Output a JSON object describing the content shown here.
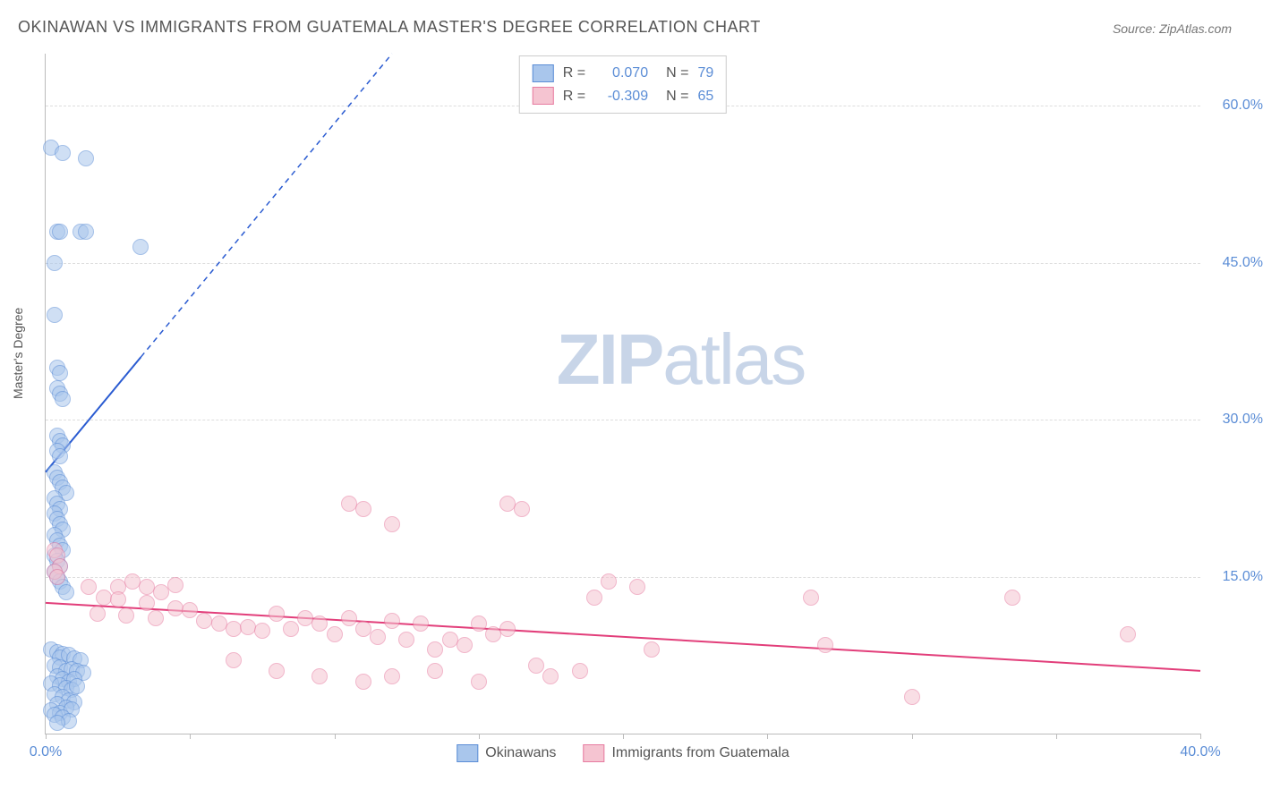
{
  "title": "OKINAWAN VS IMMIGRANTS FROM GUATEMALA MASTER'S DEGREE CORRELATION CHART",
  "source": "Source: ZipAtlas.com",
  "ylabel": "Master's Degree",
  "watermark_zip": "ZIP",
  "watermark_atlas": "atlas",
  "chart": {
    "type": "scatter",
    "xlim": [
      0,
      40
    ],
    "ylim": [
      0,
      65
    ],
    "xticks": [
      0,
      5,
      10,
      15,
      20,
      25,
      30,
      35,
      40
    ],
    "xtick_labels": [
      "0.0%",
      "",
      "",
      "",
      "",
      "",
      "",
      "",
      "40.0%"
    ],
    "yticks": [
      15,
      30,
      45,
      60
    ],
    "ytick_labels": [
      "15.0%",
      "30.0%",
      "45.0%",
      "60.0%"
    ],
    "background": "#ffffff",
    "grid_color": "#dddddd",
    "axis_color": "#bbbbbb",
    "marker_radius": 8,
    "marker_opacity": 0.55,
    "series": [
      {
        "name": "Okinawans",
        "label": "Okinawans",
        "color_fill": "#a9c6ec",
        "color_stroke": "#5b8dd6",
        "R": "0.070",
        "N": "79",
        "trend": {
          "x1": 0,
          "y1": 25,
          "x2": 3.3,
          "y2": 36,
          "color": "#2a5bd1",
          "width": 2,
          "dash": "none"
        },
        "trend_ext": {
          "x1": 3.3,
          "y1": 36,
          "x2": 12,
          "y2": 65,
          "color": "#2a5bd1",
          "width": 1.5,
          "dash": "6,5"
        },
        "points": [
          [
            0.2,
            56
          ],
          [
            0.6,
            55.5
          ],
          [
            1.4,
            55
          ],
          [
            0.4,
            48
          ],
          [
            0.5,
            48
          ],
          [
            1.2,
            48
          ],
          [
            1.4,
            48
          ],
          [
            0.3,
            45
          ],
          [
            3.3,
            46.5
          ],
          [
            0.3,
            40
          ],
          [
            0.4,
            35
          ],
          [
            0.5,
            34.5
          ],
          [
            0.4,
            33
          ],
          [
            0.5,
            32.5
          ],
          [
            0.6,
            32
          ],
          [
            0.4,
            28.5
          ],
          [
            0.5,
            28
          ],
          [
            0.6,
            27.5
          ],
          [
            0.4,
            27
          ],
          [
            0.5,
            26.5
          ],
          [
            0.3,
            25
          ],
          [
            0.4,
            24.5
          ],
          [
            0.5,
            24
          ],
          [
            0.6,
            23.5
          ],
          [
            0.7,
            23
          ],
          [
            0.3,
            22.5
          ],
          [
            0.4,
            22
          ],
          [
            0.5,
            21.5
          ],
          [
            0.3,
            21
          ],
          [
            0.4,
            20.5
          ],
          [
            0.5,
            20
          ],
          [
            0.6,
            19.5
          ],
          [
            0.3,
            19
          ],
          [
            0.4,
            18.5
          ],
          [
            0.5,
            18
          ],
          [
            0.6,
            17.5
          ],
          [
            0.3,
            17
          ],
          [
            0.4,
            16.5
          ],
          [
            0.5,
            16
          ],
          [
            0.3,
            15.5
          ],
          [
            0.4,
            15
          ],
          [
            0.5,
            14.5
          ],
          [
            0.6,
            14
          ],
          [
            0.7,
            13.5
          ],
          [
            0.2,
            8
          ],
          [
            0.4,
            7.8
          ],
          [
            0.6,
            7.6
          ],
          [
            0.5,
            7.3
          ],
          [
            0.8,
            7.5
          ],
          [
            1.0,
            7.2
          ],
          [
            1.2,
            7.0
          ],
          [
            0.3,
            6.5
          ],
          [
            0.5,
            6.3
          ],
          [
            0.7,
            6.0
          ],
          [
            0.9,
            6.2
          ],
          [
            1.1,
            6.0
          ],
          [
            1.3,
            5.8
          ],
          [
            0.4,
            5.5
          ],
          [
            0.6,
            5.2
          ],
          [
            0.8,
            5.0
          ],
          [
            1.0,
            5.2
          ],
          [
            0.2,
            4.8
          ],
          [
            0.5,
            4.6
          ],
          [
            0.7,
            4.4
          ],
          [
            0.9,
            4.2
          ],
          [
            1.1,
            4.5
          ],
          [
            0.3,
            3.8
          ],
          [
            0.6,
            3.5
          ],
          [
            0.8,
            3.2
          ],
          [
            1.0,
            3.0
          ],
          [
            0.4,
            2.8
          ],
          [
            0.7,
            2.5
          ],
          [
            0.2,
            2.2
          ],
          [
            0.5,
            2.0
          ],
          [
            0.9,
            2.3
          ],
          [
            0.3,
            1.8
          ],
          [
            0.6,
            1.5
          ],
          [
            0.8,
            1.2
          ],
          [
            0.4,
            1.0
          ]
        ]
      },
      {
        "name": "Immigrants from Guatemala",
        "label": "Immigrants from Guatemala",
        "color_fill": "#f5c4d1",
        "color_stroke": "#e77ba0",
        "R": "-0.309",
        "N": "65",
        "trend": {
          "x1": 0,
          "y1": 12.5,
          "x2": 40,
          "y2": 6,
          "color": "#e23e7a",
          "width": 2,
          "dash": "none"
        },
        "points": [
          [
            0.3,
            17.5
          ],
          [
            0.4,
            17
          ],
          [
            0.5,
            16
          ],
          [
            0.3,
            15.5
          ],
          [
            0.4,
            15
          ],
          [
            1.5,
            14
          ],
          [
            2.5,
            14
          ],
          [
            3.0,
            14.5
          ],
          [
            3.5,
            14
          ],
          [
            4.0,
            13.5
          ],
          [
            4.5,
            14.2
          ],
          [
            2.0,
            13
          ],
          [
            2.5,
            12.8
          ],
          [
            3.5,
            12.5
          ],
          [
            4.5,
            12
          ],
          [
            5.0,
            11.8
          ],
          [
            1.8,
            11.5
          ],
          [
            2.8,
            11.3
          ],
          [
            3.8,
            11
          ],
          [
            5.5,
            10.8
          ],
          [
            6.0,
            10.5
          ],
          [
            6.5,
            10
          ],
          [
            7.0,
            10.2
          ],
          [
            7.5,
            9.8
          ],
          [
            8.0,
            11.5
          ],
          [
            8.5,
            10
          ],
          [
            9.0,
            11
          ],
          [
            9.5,
            10.5
          ],
          [
            10.0,
            9.5
          ],
          [
            10.5,
            11
          ],
          [
            11.0,
            10
          ],
          [
            11.5,
            9.2
          ],
          [
            12.0,
            10.8
          ],
          [
            12.5,
            9
          ],
          [
            13.0,
            10.5
          ],
          [
            14.0,
            9
          ],
          [
            15.0,
            10.5
          ],
          [
            15.5,
            9.5
          ],
          [
            16.0,
            10
          ],
          [
            13.5,
            8
          ],
          [
            14.5,
            8.5
          ],
          [
            10.5,
            22
          ],
          [
            11.0,
            21.5
          ],
          [
            12.0,
            20
          ],
          [
            16.0,
            22
          ],
          [
            16.5,
            21.5
          ],
          [
            6.5,
            7
          ],
          [
            8.0,
            6
          ],
          [
            9.5,
            5.5
          ],
          [
            11.0,
            5
          ],
          [
            12.0,
            5.5
          ],
          [
            13.5,
            6
          ],
          [
            15.0,
            5
          ],
          [
            17.0,
            6.5
          ],
          [
            17.5,
            5.5
          ],
          [
            18.5,
            6
          ],
          [
            19.5,
            14.5
          ],
          [
            19.0,
            13
          ],
          [
            20.5,
            14
          ],
          [
            21.0,
            8
          ],
          [
            26.5,
            13
          ],
          [
            27.0,
            8.5
          ],
          [
            30.0,
            3.5
          ],
          [
            33.5,
            13
          ],
          [
            37.5,
            9.5
          ]
        ]
      }
    ]
  },
  "legend_top": {
    "R_label": "R =",
    "N_label": "N =",
    "text_color": "#555555",
    "value_color": "#5b8dd6"
  },
  "legend_bottom": {
    "text_color": "#555555"
  }
}
